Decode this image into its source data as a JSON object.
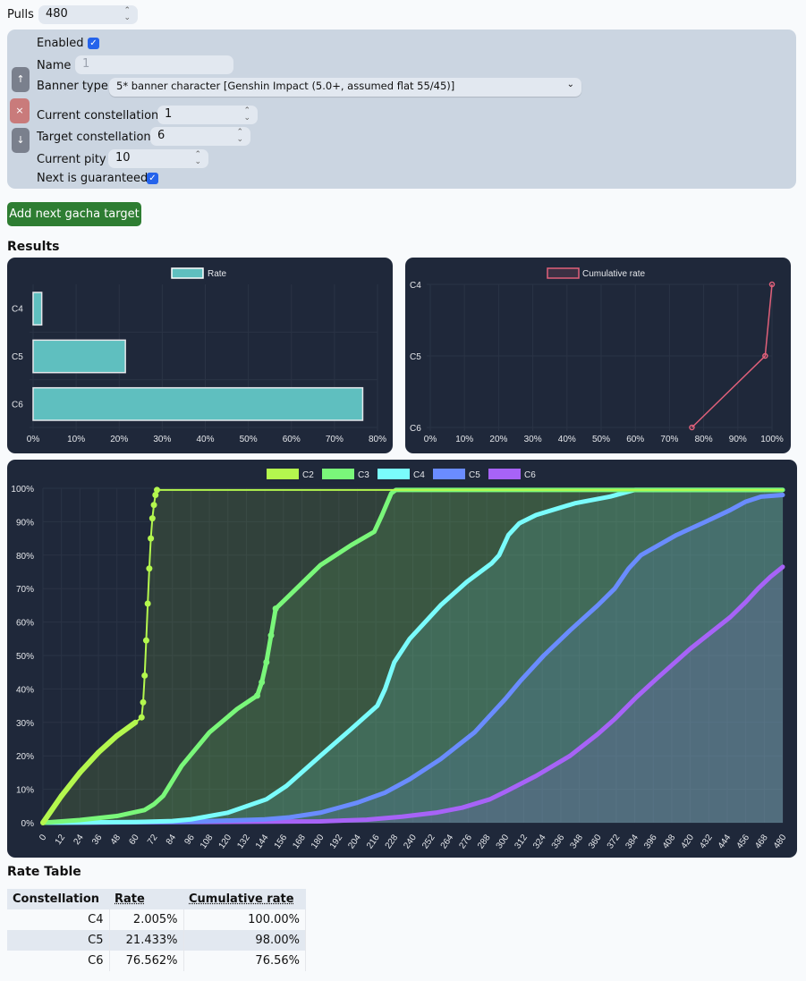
{
  "pulls": {
    "label": "Pulls",
    "value": "480"
  },
  "target": {
    "enabled_label": "Enabled",
    "enabled": true,
    "name_label": "Name",
    "name_placeholder": "1",
    "banner_label": "Banner type",
    "banner_value": "5* banner character [Genshin Impact (5.0+, assumed flat 55/45)]",
    "current_const_label": "Current constellation",
    "current_const": "1",
    "target_const_label": "Target constellation",
    "target_const": "6",
    "pity_label": "Current pity",
    "pity": "10",
    "guaranteed_label": "Next is guaranteed",
    "guaranteed": true,
    "up_icon": "↑",
    "remove_icon": "×",
    "down_icon": "↓"
  },
  "add_button": "Add next gacha target",
  "results_title": "Results",
  "rate_table_title": "Rate Table",
  "table": {
    "headers": [
      "Constellation",
      "Rate",
      "Cumulative rate"
    ],
    "rows": [
      [
        "C4",
        "2.005%",
        "100.00%"
      ],
      [
        "C5",
        "21.433%",
        "98.00%"
      ],
      [
        "C6",
        "76.562%",
        "76.56%"
      ]
    ]
  },
  "colors": {
    "bar": "#5fbfbf",
    "cumulative": "#e0607a",
    "C2": "#b4f74e",
    "C3": "#7af77a",
    "C4": "#7afcfc",
    "C5": "#6a8cff",
    "C6": "#a763f7"
  },
  "chart_data": [
    {
      "type": "bar",
      "orientation": "horizontal",
      "legend": "Rate",
      "categories": [
        "C4",
        "C5",
        "C6"
      ],
      "values": [
        2.005,
        21.433,
        76.562
      ],
      "xlim": [
        0,
        80
      ],
      "xticks": [
        "0%",
        "10%",
        "20%",
        "30%",
        "40%",
        "50%",
        "60%",
        "70%",
        "80%"
      ]
    },
    {
      "type": "line",
      "legend": "Cumulative rate",
      "categories": [
        "C4",
        "C5",
        "C6"
      ],
      "values": [
        100,
        98,
        76.56
      ],
      "xlim": [
        0,
        100
      ],
      "xticks": [
        "0%",
        "10%",
        "20%",
        "30%",
        "40%",
        "50%",
        "60%",
        "70%",
        "80%",
        "90%",
        "100%"
      ]
    },
    {
      "type": "area",
      "xlabel": "",
      "ylabel": "",
      "xlim": [
        0,
        480
      ],
      "ylim": [
        0,
        100
      ],
      "yticks": [
        "0%",
        "10%",
        "20%",
        "30%",
        "40%",
        "50%",
        "60%",
        "70%",
        "80%",
        "90%",
        "100%"
      ],
      "xtick_step": 12,
      "series": [
        {
          "name": "C2",
          "points": [
            [
              0,
              0
            ],
            [
              12,
              8
            ],
            [
              24,
              15
            ],
            [
              36,
              21
            ],
            [
              48,
              26
            ],
            [
              60,
              30
            ],
            [
              64,
              31.5
            ],
            [
              65,
              36
            ],
            [
              66,
              44
            ],
            [
              67,
              54.5
            ],
            [
              68,
              65.5
            ],
            [
              69,
              76
            ],
            [
              70,
              85
            ],
            [
              71,
              91
            ],
            [
              72,
              95
            ],
            [
              73,
              98
            ],
            [
              74,
              99.5
            ],
            [
              480,
              99.5
            ]
          ]
        },
        {
          "name": "C3",
          "points": [
            [
              0,
              0
            ],
            [
              24,
              0.8
            ],
            [
              48,
              2
            ],
            [
              66,
              3.8
            ],
            [
              72,
              5.5
            ],
            [
              78,
              8
            ],
            [
              90,
              17
            ],
            [
              108,
              27
            ],
            [
              126,
              34
            ],
            [
              139,
              38
            ],
            [
              142,
              42
            ],
            [
              145,
              48
            ],
            [
              148,
              56
            ],
            [
              151,
              64
            ],
            [
              160,
              68
            ],
            [
              180,
              77
            ],
            [
              200,
              83
            ],
            [
              215,
              87
            ],
            [
              220,
              92
            ],
            [
              226,
              98.5
            ],
            [
              229,
              99.5
            ],
            [
              480,
              99.5
            ]
          ]
        },
        {
          "name": "C4",
          "points": [
            [
              0,
              0
            ],
            [
              60,
              0.2
            ],
            [
              84,
              0.5
            ],
            [
              96,
              1
            ],
            [
              120,
              3
            ],
            [
              145,
              7
            ],
            [
              158,
              11
            ],
            [
              180,
              20
            ],
            [
              200,
              28
            ],
            [
              217,
              35
            ],
            [
              222,
              40
            ],
            [
              228,
              48
            ],
            [
              238,
              55
            ],
            [
              258,
              65
            ],
            [
              275,
              72
            ],
            [
              291,
              77.5
            ],
            [
              296,
              80
            ],
            [
              302,
              86
            ],
            [
              309,
              89.5
            ],
            [
              320,
              92
            ],
            [
              345,
              95.5
            ],
            [
              368,
              97.5
            ],
            [
              384,
              99.5
            ],
            [
              480,
              99.5
            ]
          ]
        },
        {
          "name": "C5",
          "points": [
            [
              0,
              0
            ],
            [
              96,
              0.3
            ],
            [
              144,
              1
            ],
            [
              160,
              1.6
            ],
            [
              180,
              3
            ],
            [
              204,
              6
            ],
            [
              222,
              9
            ],
            [
              238,
              13
            ],
            [
              258,
              19
            ],
            [
              280,
              27
            ],
            [
              291,
              32.5
            ],
            [
              300,
              37
            ],
            [
              310,
              42.5
            ],
            [
              325,
              50
            ],
            [
              342,
              57.5
            ],
            [
              360,
              65
            ],
            [
              371,
              70
            ],
            [
              380,
              76
            ],
            [
              388,
              80
            ],
            [
              411,
              86
            ],
            [
              430,
              90
            ],
            [
              446,
              93.5
            ],
            [
              456,
              96
            ],
            [
              466,
              97.5
            ],
            [
              480,
              98
            ]
          ]
        },
        {
          "name": "C6",
          "points": [
            [
              0,
              0
            ],
            [
              180,
              0.4
            ],
            [
              210,
              0.9
            ],
            [
              233,
              1.8
            ],
            [
              255,
              3
            ],
            [
              272,
              4.5
            ],
            [
              290,
              7
            ],
            [
              301,
              9.5
            ],
            [
              320,
              14
            ],
            [
              342,
              20
            ],
            [
              360,
              26.5
            ],
            [
              371,
              31
            ],
            [
              385,
              37.5
            ],
            [
              398,
              43
            ],
            [
              420,
              52
            ],
            [
              446,
              61.5
            ],
            [
              456,
              66
            ],
            [
              464,
              70
            ],
            [
              472,
              73.5
            ],
            [
              480,
              76.5
            ]
          ]
        }
      ]
    }
  ]
}
